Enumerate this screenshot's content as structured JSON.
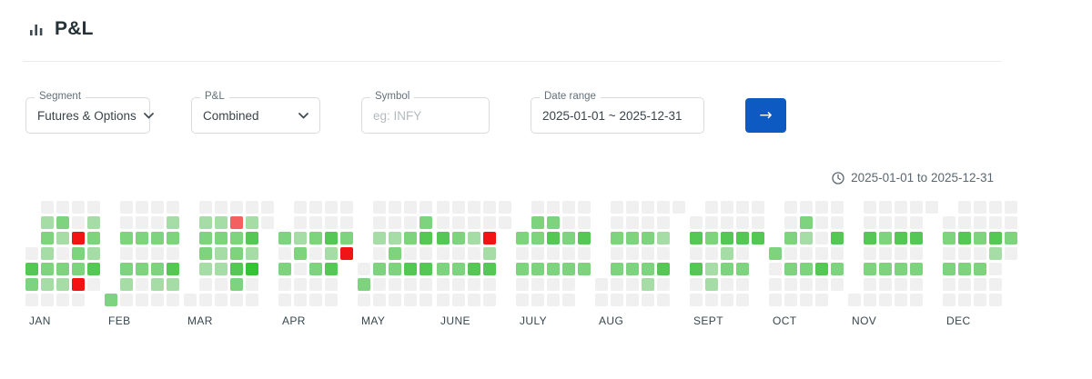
{
  "header": {
    "title": "P&L"
  },
  "filters": {
    "segment": {
      "label": "Segment",
      "value": "Futures & Options"
    },
    "pnl": {
      "label": "P&L",
      "value": "Combined"
    },
    "symbol": {
      "label": "Symbol",
      "placeholder": "eg: INFY"
    },
    "date_range": {
      "label": "Date range",
      "value": "2025-01-01 ~ 2025-12-31"
    },
    "submit_label": "→"
  },
  "range_display": {
    "text": "2025-01-01 to 2025-12-31"
  },
  "colors": {
    "accent_blue": "#0d5ac2",
    "no_trade_gray": "#f0f0f1",
    "profit_green_light": "#a6dca6",
    "profit_green_medium": "#7ed37e",
    "profit_green_dark": "#55c755",
    "profit_green_vivid": "#33c433",
    "loss_red_light": "#f26060",
    "loss_red_bright": "#f21414"
  },
  "heatmap": {
    "type": "calendar-heatmap",
    "rows_meaning": "days Sun(top) to Sat(bottom), columns are weeks; g=no-trade, 1-4=profit intensity, r/R=loss",
    "cell_colors": {
      "g": "#f0f0f1",
      "1": "#a6dca6",
      "2": "#7ed37e",
      "3": "#55c755",
      "4": "#33c433",
      "r": "#f26060",
      "R": "#f21414"
    },
    "months": [
      {
        "label": "JAN",
        "rows": [
          ".gggg",
          ".12g1",
          ".21R2",
          "g1g21",
          "32223",
          "211Rg",
          "gggg."
        ]
      },
      {
        "label": "FEB",
        "rows": [
          ".gggg",
          ".ggg1",
          ".2222",
          ".gggg",
          ".2223",
          ".1g11",
          "2gggg"
        ]
      },
      {
        "label": "MAR",
        "rows": [
          ".ggggg",
          ".11r1g",
          ".2223.",
          ".2121.",
          ".1134.",
          ".gg2g.",
          "ggggg."
        ]
      },
      {
        "label": "APR",
        "rows": [
          ".gggg",
          ".gggg",
          "21232",
          "g2g1R",
          "2g23.",
          "gggg.",
          "gggg."
        ]
      },
      {
        "label": "MAY",
        "rows": [
          ".gggg",
          ".ggg2",
          ".1123",
          ".g2gg",
          "g2233",
          "2gggg",
          "ggggg"
        ]
      },
      {
        "label": "JUNE",
        "rows": [
          "ggggg",
          "ggggg",
          "321R.",
          "ggg1.",
          "2233.",
          "gggg.",
          "gggg."
        ]
      },
      {
        "label": "JULY",
        "rows": [
          ".gggg",
          ".22gg",
          "22323",
          "ggggg",
          "22222",
          "gggg.",
          "gggg."
        ]
      },
      {
        "label": "AUG",
        "rows": [
          ".ggggg",
          ".gggg.",
          ".2221.",
          ".gggg.",
          ".2223.",
          "ggg1g.",
          "ggggg."
        ]
      },
      {
        "label": "SEPT",
        "rows": [
          ".gggg",
          "ggggg",
          "32333",
          "gg1g.",
          "3122.",
          "g1gg.",
          "gggg."
        ]
      },
      {
        "label": "OCT",
        "rows": [
          ".gggg",
          ".g2gg",
          ".21g3",
          "2gggg",
          "g2232",
          "ggggg",
          "gggg."
        ]
      },
      {
        "label": "NOV",
        "rows": [
          ".ggggg",
          ".gggg.",
          ".3233.",
          ".gggg.",
          ".2222.",
          ".gggg.",
          "ggggg."
        ]
      },
      {
        "label": "DEC",
        "rows": [
          ".gggg",
          "ggggg",
          "23232",
          "ggg1g",
          "222g.",
          "gggg.",
          "gggg."
        ]
      }
    ]
  }
}
